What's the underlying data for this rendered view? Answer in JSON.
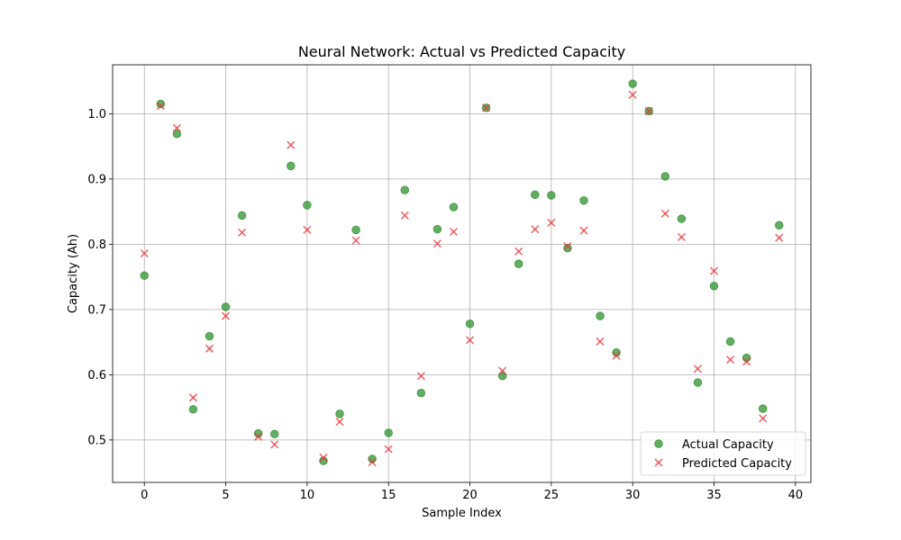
{
  "chart_data": {
    "type": "scatter",
    "title": "Neural Network: Actual vs Predicted Capacity",
    "xlabel": "Sample Index",
    "ylabel": "Capacity (Ah)",
    "xlim": [
      -1.95,
      40.95
    ],
    "ylim": [
      0.435,
      1.075
    ],
    "xticks": [
      0,
      5,
      10,
      15,
      20,
      25,
      30,
      35,
      40
    ],
    "yticks": [
      0.5,
      0.6,
      0.7,
      0.8,
      0.9,
      1.0
    ],
    "ytick_labels": [
      "0.5",
      "0.6",
      "0.7",
      "0.8",
      "0.9",
      "1.0"
    ],
    "grid": true,
    "legend_position": "lower-right",
    "x": [
      0,
      1,
      2,
      3,
      4,
      5,
      6,
      7,
      8,
      9,
      10,
      11,
      12,
      13,
      14,
      15,
      16,
      17,
      18,
      19,
      20,
      21,
      22,
      23,
      24,
      25,
      26,
      27,
      28,
      29,
      30,
      31,
      32,
      33,
      34,
      35,
      36,
      37,
      38,
      39
    ],
    "series": [
      {
        "name": "Actual Capacity",
        "marker": "circle",
        "color": "#228B22",
        "values": [
          0.752,
          1.015,
          0.969,
          0.547,
          0.659,
          0.704,
          0.844,
          0.51,
          0.509,
          0.92,
          0.86,
          0.468,
          0.54,
          0.822,
          0.471,
          0.511,
          0.883,
          0.572,
          0.823,
          0.857,
          0.678,
          1.009,
          0.598,
          0.77,
          0.876,
          0.875,
          0.794,
          0.867,
          0.69,
          0.634,
          1.046,
          1.004,
          0.904,
          0.839,
          0.588,
          0.736,
          0.651,
          0.626,
          0.548,
          0.829
        ]
      },
      {
        "name": "Predicted Capacity",
        "marker": "x",
        "color": "#E8383D",
        "values": [
          0.786,
          1.012,
          0.978,
          0.565,
          0.64,
          0.69,
          0.818,
          0.505,
          0.493,
          0.952,
          0.822,
          0.473,
          0.528,
          0.806,
          0.466,
          0.486,
          0.844,
          0.598,
          0.801,
          0.819,
          0.653,
          1.009,
          0.606,
          0.789,
          0.823,
          0.833,
          0.797,
          0.821,
          0.651,
          0.629,
          1.029,
          1.004,
          0.847,
          0.811,
          0.609,
          0.759,
          0.623,
          0.62,
          0.533,
          0.81
        ]
      }
    ]
  }
}
